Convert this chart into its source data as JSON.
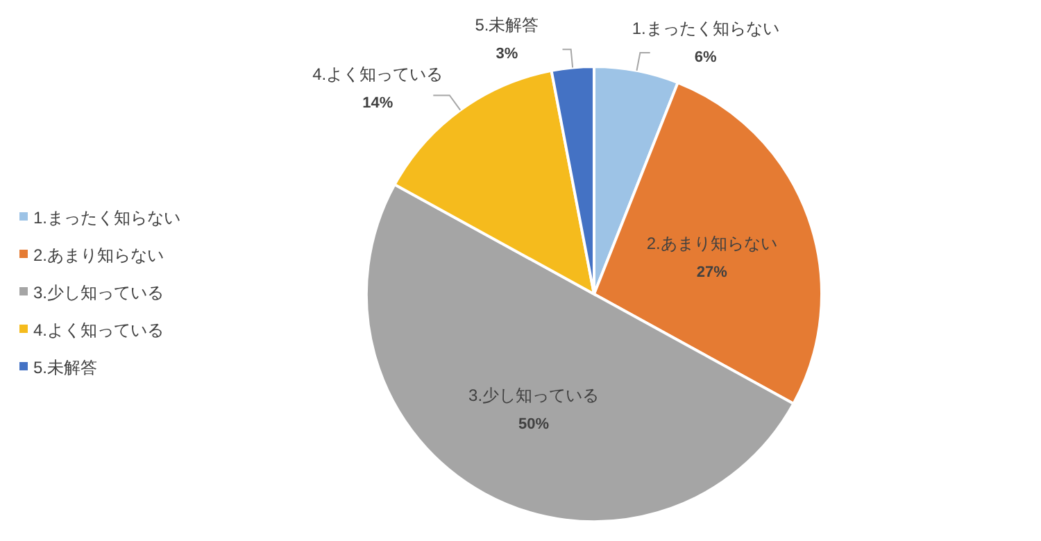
{
  "chart_data": {
    "type": "pie",
    "categories": [
      "1.まったく知らない",
      "2.あまり知らない",
      "3.少し知っている",
      "4.よく知っている",
      "5.未解答"
    ],
    "values": [
      6,
      27,
      50,
      14,
      3
    ],
    "value_labels": [
      "6%",
      "27%",
      "50%",
      "14%",
      "3%"
    ],
    "colors": [
      "#9dc3e6",
      "#e57b33",
      "#a5a5a5",
      "#f5bb1d",
      "#4472c4"
    ],
    "legend": "left"
  }
}
